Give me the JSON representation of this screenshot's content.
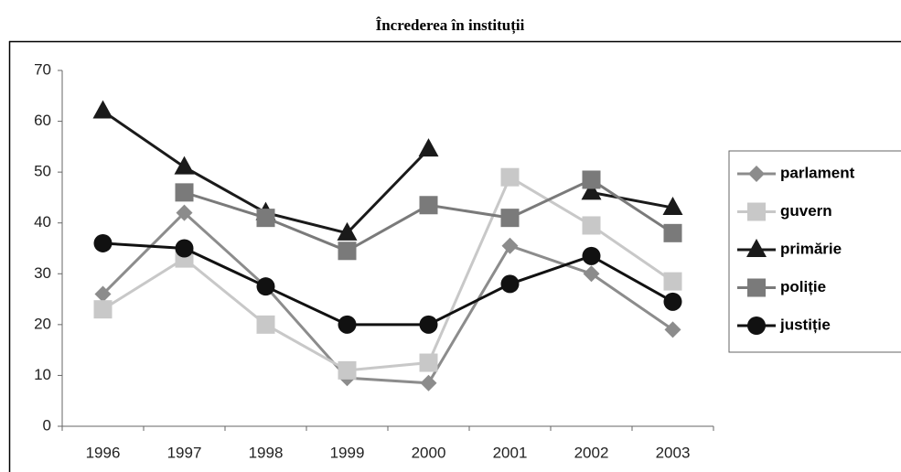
{
  "chart_data": {
    "type": "line",
    "title": "Încrederea în instituții",
    "categories": [
      "1996",
      "1997",
      "1998",
      "1999",
      "2000",
      "2001",
      "2002",
      "2003"
    ],
    "series": [
      {
        "name": "parlament",
        "color": "#8c8c8c",
        "marker": "diamond",
        "values": [
          26,
          42,
          27.5,
          9.5,
          8.5,
          35.5,
          30,
          19
        ]
      },
      {
        "name": "guvern",
        "color": "#c8c8c8",
        "marker": "square",
        "values": [
          23,
          33,
          20,
          11,
          12.5,
          49,
          39.5,
          28.5
        ]
      },
      {
        "name": "primărie",
        "color": "#1a1a1a",
        "marker": "triangle",
        "values": [
          62,
          51,
          42,
          38,
          54.5,
          null,
          46,
          43
        ]
      },
      {
        "name": "poliție",
        "color": "#7a7a7a",
        "marker": "square",
        "values": [
          null,
          46,
          41,
          34.5,
          43.5,
          41,
          48.5,
          38
        ]
      },
      {
        "name": "justiție",
        "color": "#111111",
        "marker": "circle",
        "values": [
          36,
          35,
          27.5,
          20,
          20,
          28,
          33.5,
          24.5
        ]
      }
    ],
    "ylim": [
      0,
      70
    ],
    "yticks": [
      0,
      10,
      20,
      30,
      40,
      50,
      60,
      70
    ],
    "grid": false,
    "legend": "right"
  }
}
